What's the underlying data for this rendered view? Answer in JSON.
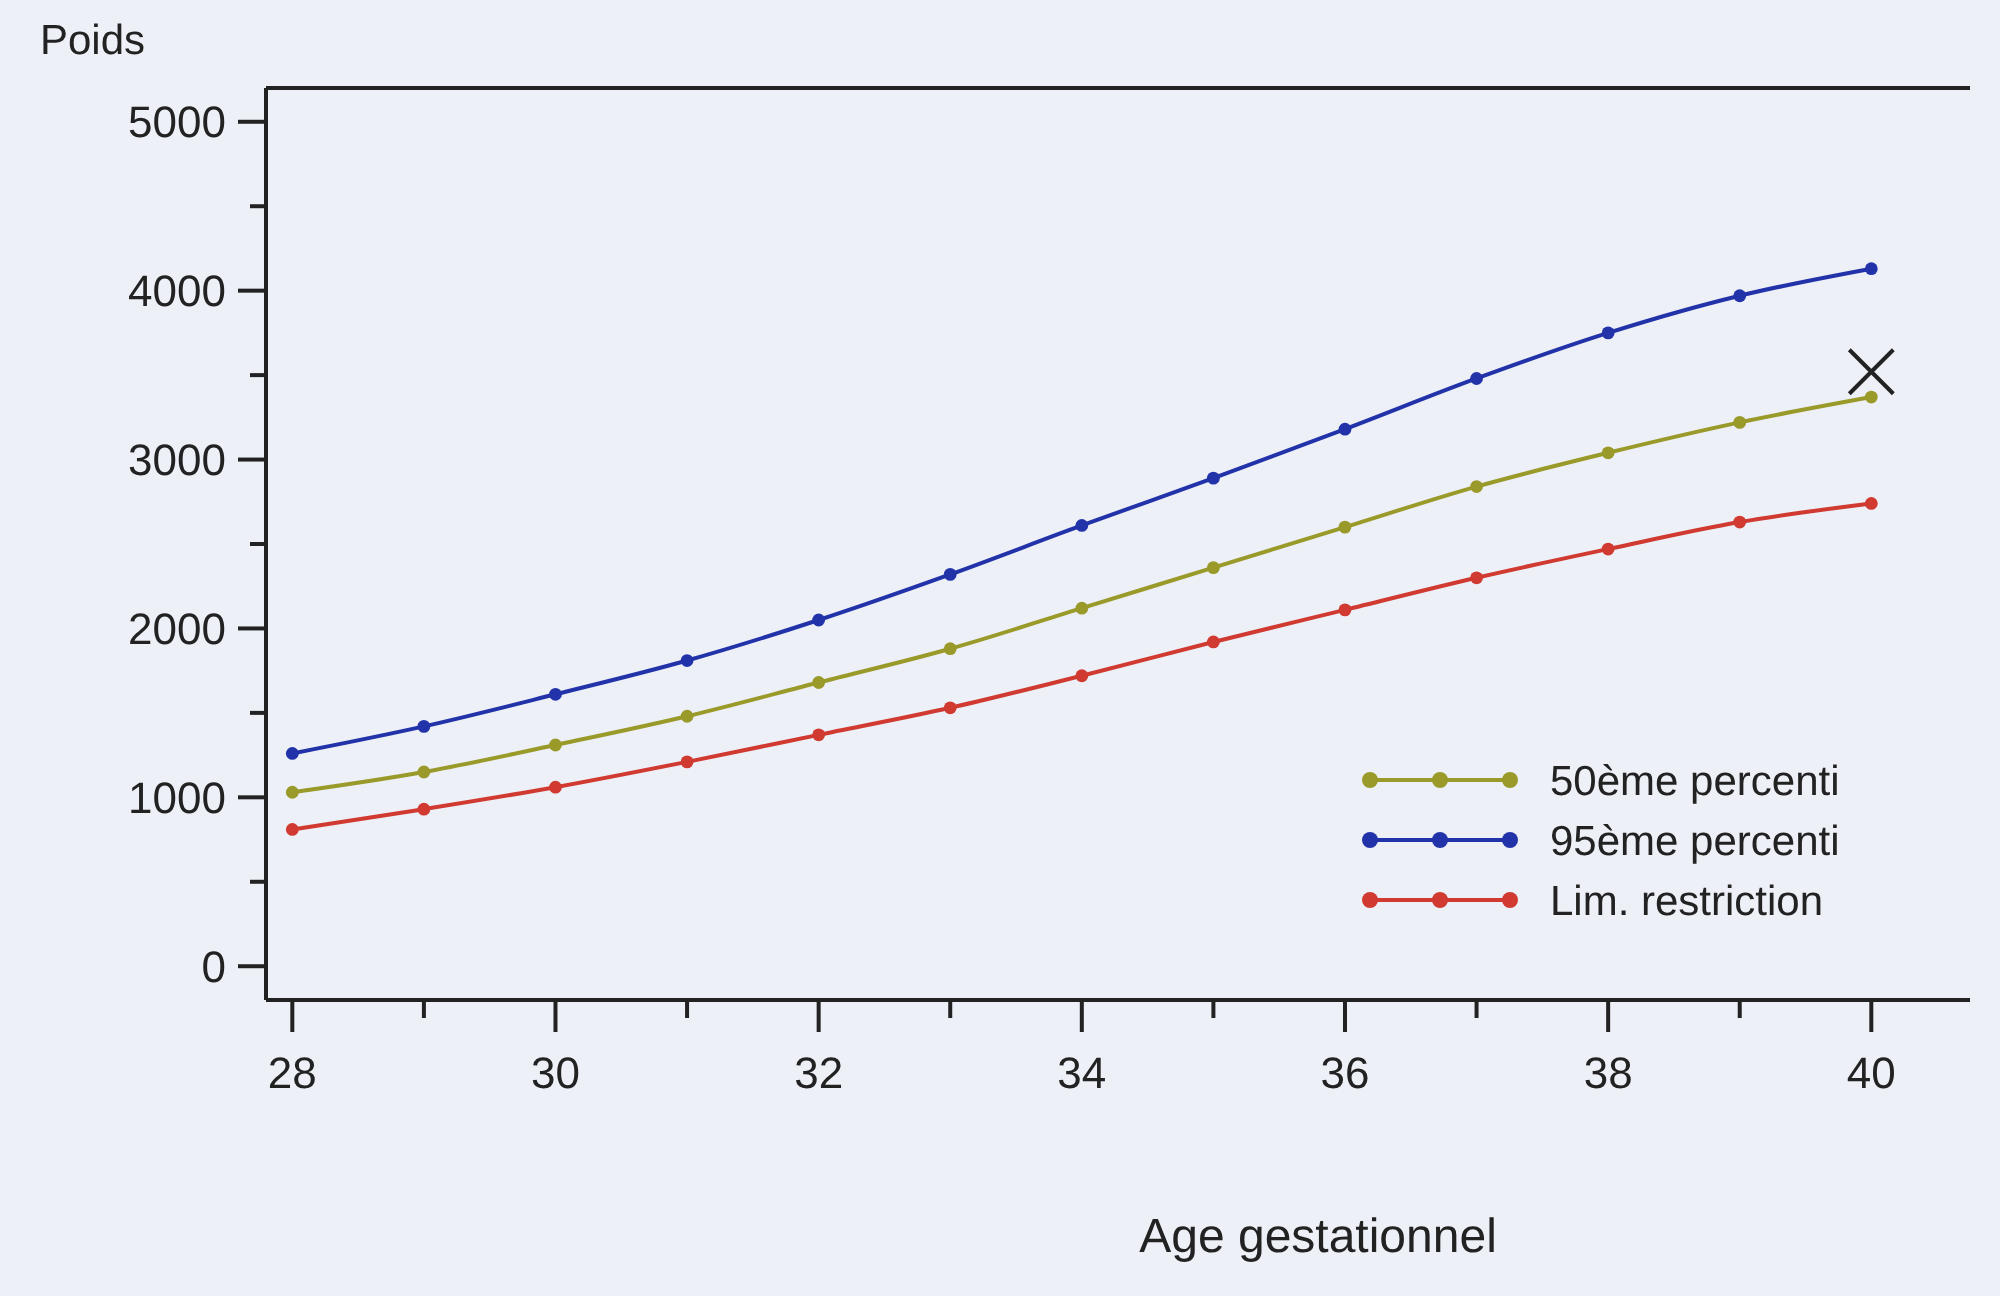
{
  "chart_data": {
    "type": "line",
    "xlabel": "Age gestationnel",
    "ylabel": "Poids",
    "x": [
      28,
      29,
      30,
      31,
      32,
      33,
      34,
      35,
      36,
      37,
      38,
      39,
      40
    ],
    "series": [
      {
        "name": "50ème percenti",
        "color": "#9a9a2a",
        "values": [
          1030,
          1150,
          1310,
          1480,
          1680,
          1880,
          2120,
          2360,
          2600,
          2840,
          3040,
          3220,
          3370
        ]
      },
      {
        "name": "95ème percenti",
        "color": "#2233aa",
        "values": [
          1260,
          1420,
          1610,
          1810,
          2050,
          2320,
          2610,
          2890,
          3180,
          3480,
          3750,
          3970,
          4130
        ]
      },
      {
        "name": "Lim. restriction",
        "color": "#d03a30",
        "values": [
          810,
          930,
          1060,
          1210,
          1370,
          1530,
          1720,
          1920,
          2110,
          2300,
          2470,
          2630,
          2740
        ]
      },
      {
        "type": "scatter",
        "marker": "cross",
        "color": "#222222",
        "x": [
          40
        ],
        "values": [
          3520
        ]
      }
    ],
    "xlim": [
      27.8,
      40.75
    ],
    "ylim": [
      -200,
      5200
    ],
    "xticks": [
      28,
      {
        "value": 29,
        "label": null
      },
      30,
      {
        "value": 31,
        "label": null
      },
      32,
      {
        "value": 33,
        "label": null
      },
      34,
      {
        "value": 35,
        "label": null
      },
      36,
      {
        "value": 37,
        "label": null
      },
      38,
      {
        "value": 39,
        "label": null
      },
      40
    ],
    "yticks": [
      0,
      {
        "value": 500,
        "label": null
      },
      1000,
      {
        "value": 1500,
        "label": null
      },
      2000,
      {
        "value": 2500,
        "label": null
      },
      3000,
      {
        "value": 3500,
        "label": null
      },
      4000,
      {
        "value": 4500,
        "label": null
      },
      5000
    ],
    "marker": "circle",
    "line_style": "solid",
    "legend": "bottom right",
    "grid": false
  }
}
